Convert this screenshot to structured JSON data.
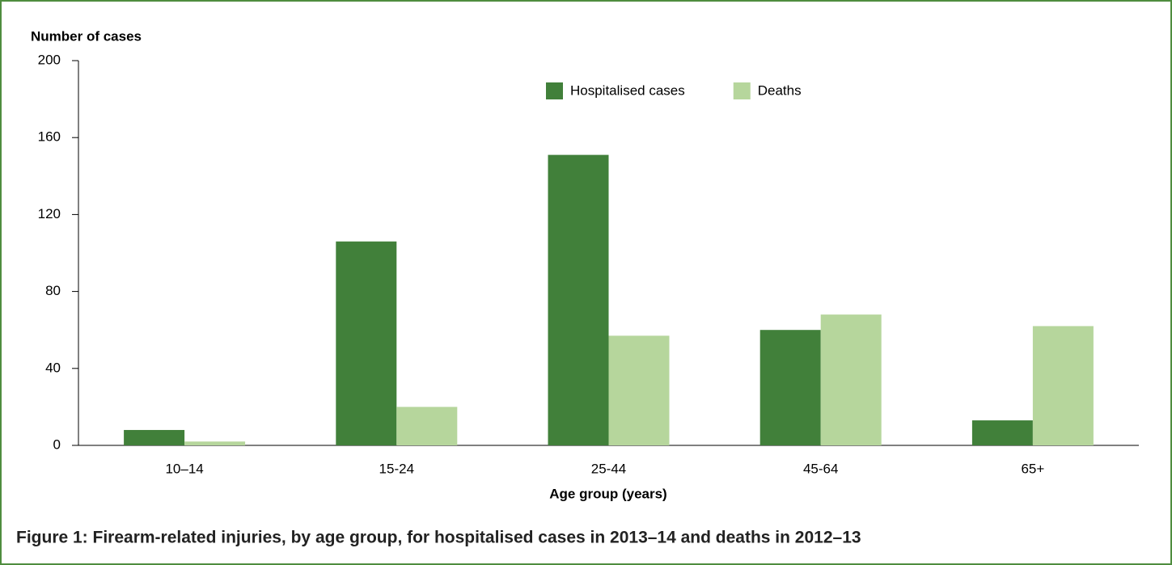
{
  "chart_data": {
    "type": "bar",
    "ylabel": "Number of  cases",
    "xlabel": "Age group (years)",
    "caption": "Figure 1: Firearm-related injuries, by age group, for hospitalised cases in 2013–14 and deaths in 2012–13",
    "categories": [
      "10–14",
      "15-24",
      "25-44",
      "45-64",
      "65+"
    ],
    "series": [
      {
        "name": "Hospitalised cases",
        "color": "#41803a",
        "values": [
          8,
          106,
          151,
          60,
          13
        ]
      },
      {
        "name": "Deaths",
        "color": "#b6d69c",
        "values": [
          2,
          20,
          57,
          68,
          62
        ]
      }
    ],
    "ylim": [
      0,
      200
    ],
    "yticks": [
      0,
      40,
      80,
      120,
      160,
      200
    ],
    "legend": "top-right"
  }
}
